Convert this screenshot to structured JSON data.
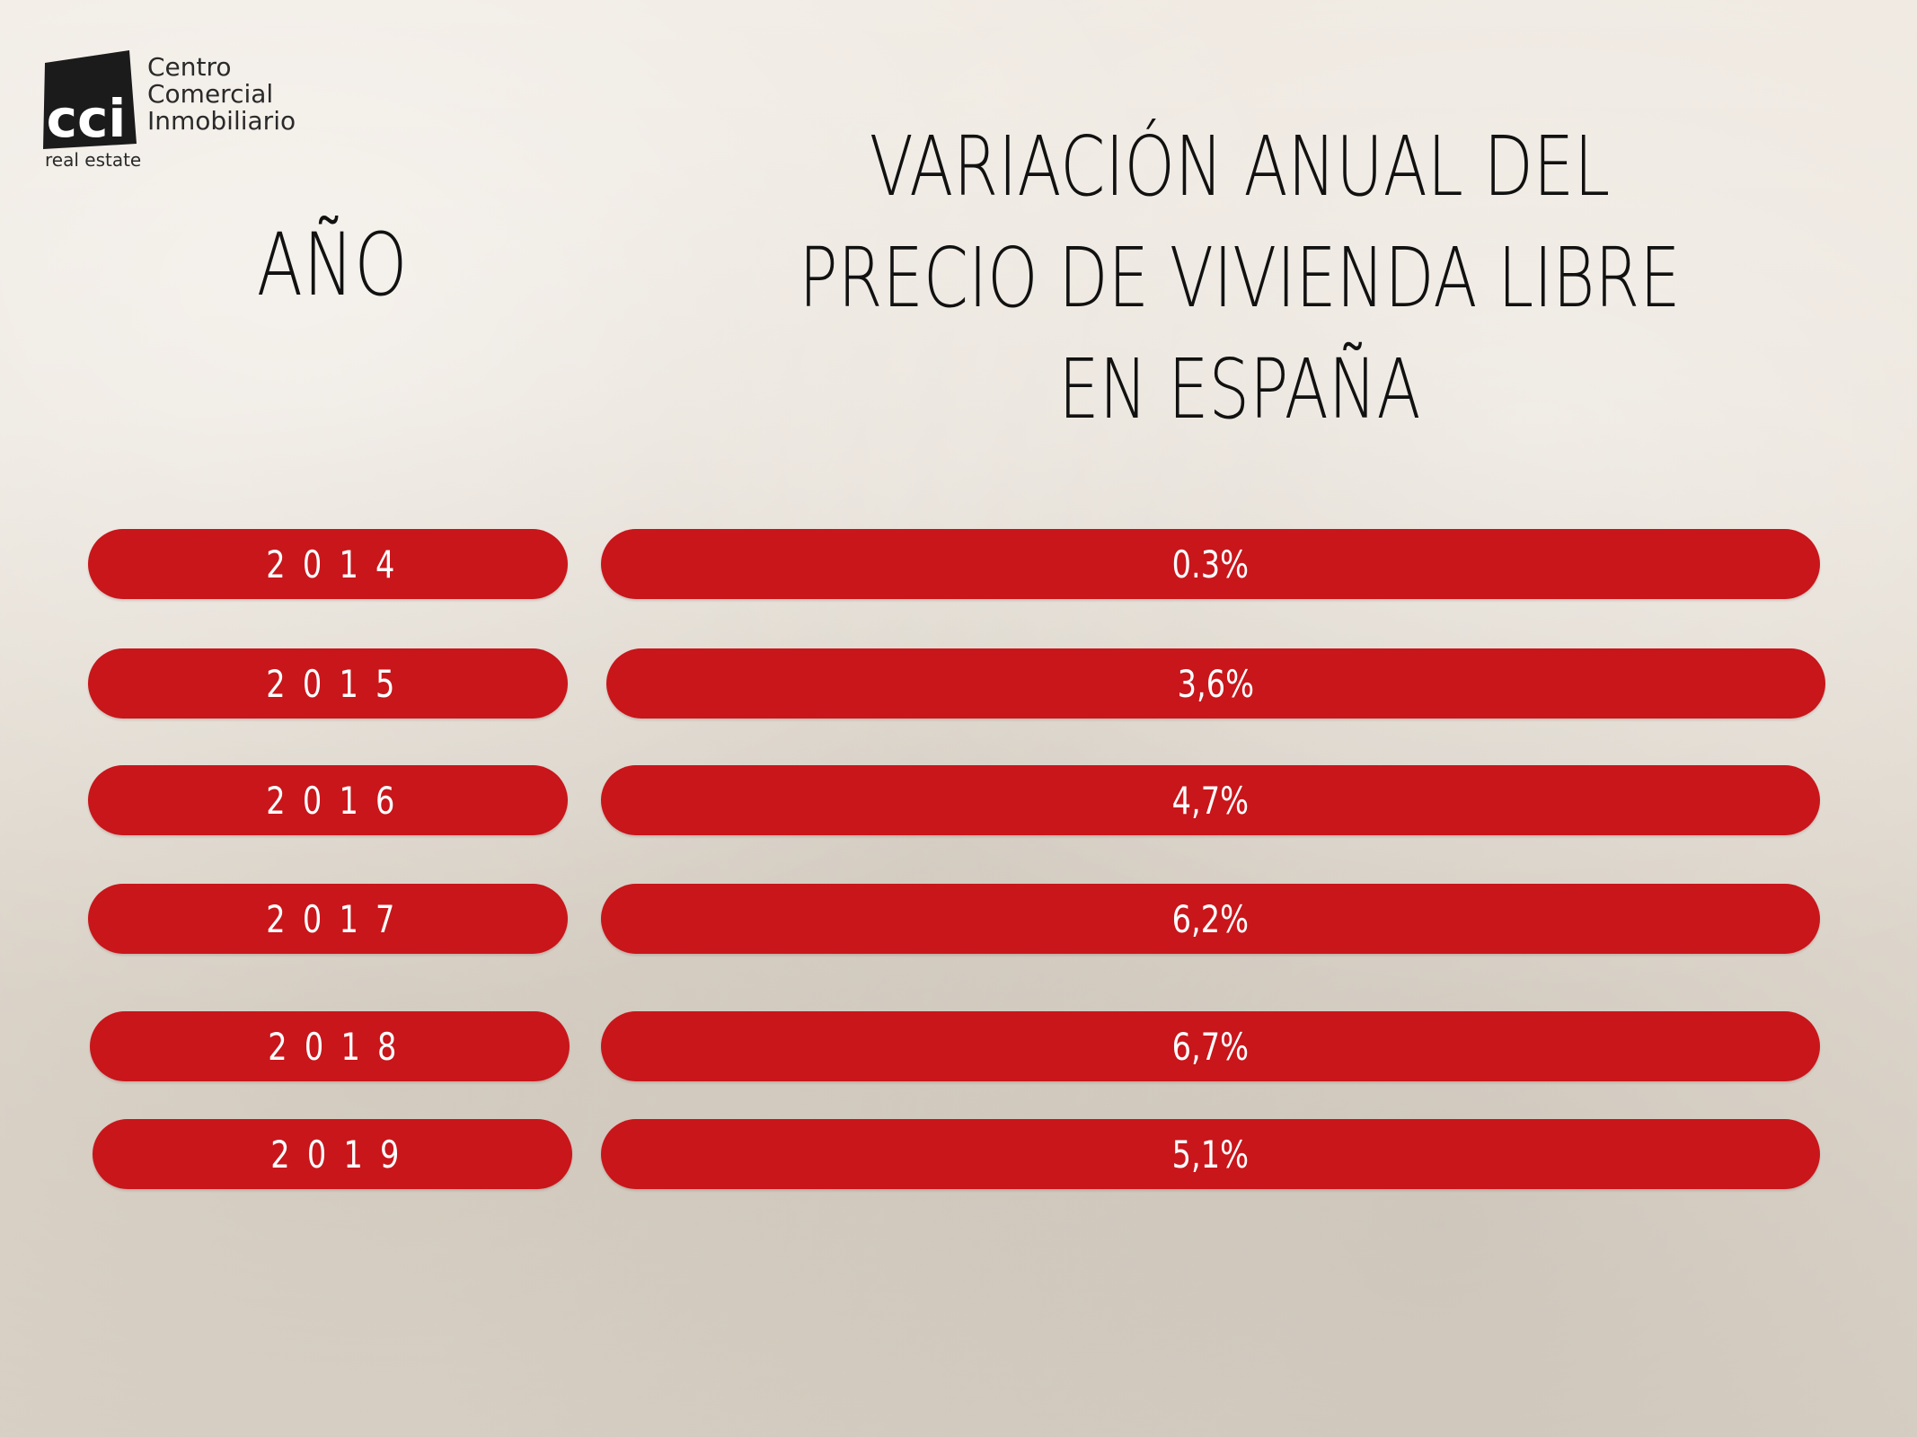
{
  "logo": {
    "mark_text": "cci",
    "lines": [
      "Centro",
      "Comercial",
      "Inmobiliario"
    ],
    "sub": "real estate"
  },
  "chart_data": {
    "type": "table",
    "title_lines": [
      "VARIACIÓN ANUAL DEL",
      "PRECIO DE VIVIENDA LIBRE",
      "EN ESPAÑA"
    ],
    "year_header": "AÑO",
    "categories": [
      "2014",
      "2015",
      "2016",
      "2017",
      "2018",
      "2019"
    ],
    "value_labels": [
      "0.3%",
      "3,6%",
      "4,7%",
      "6,2%",
      "6,7%",
      "5,1%"
    ],
    "values": [
      0.3,
      3.6,
      4.7,
      6.2,
      6.7,
      5.1
    ],
    "unit": "%"
  },
  "colors": {
    "pill": "#c8161b",
    "pill_text": "#ffffff",
    "heading": "#111111"
  }
}
